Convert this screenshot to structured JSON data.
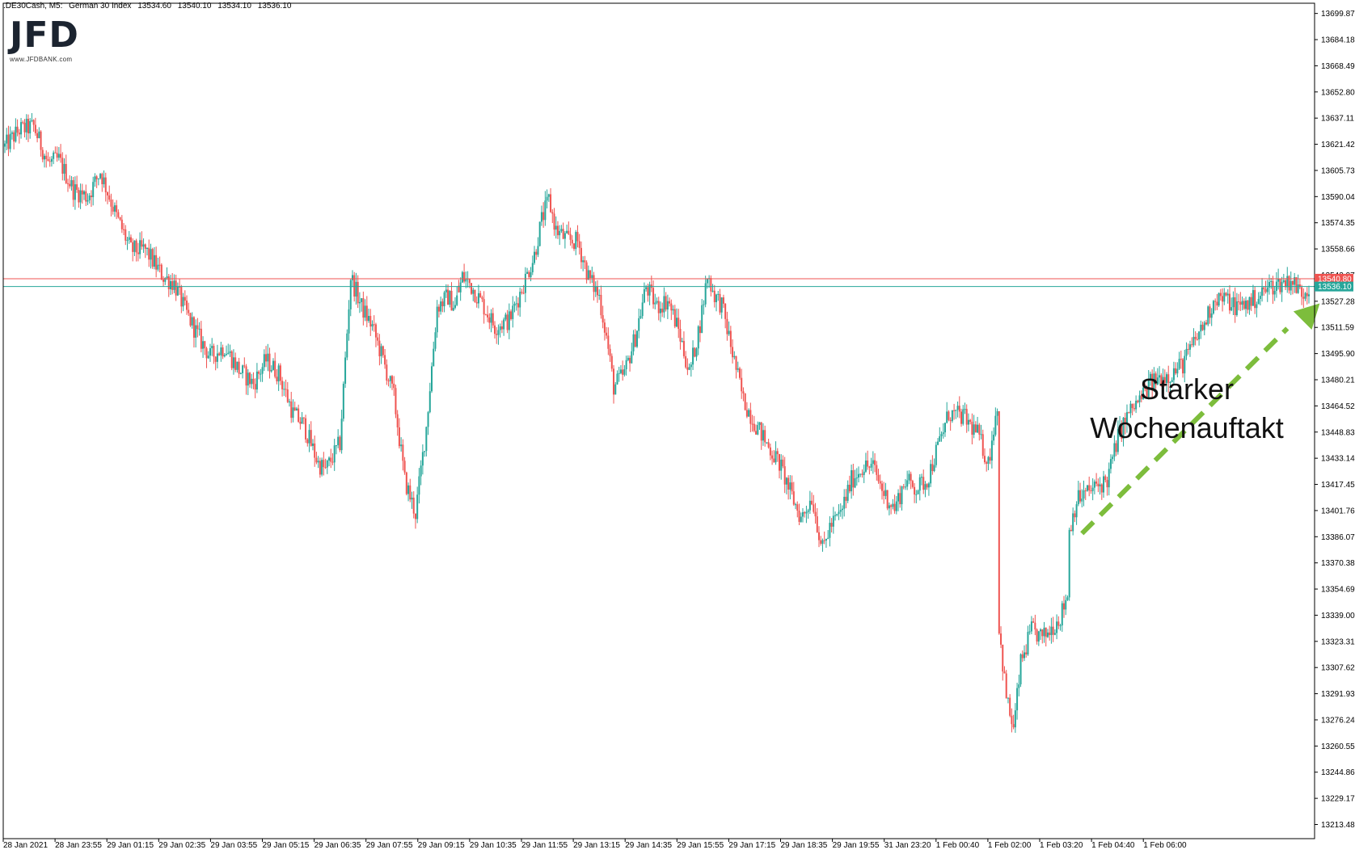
{
  "header": {
    "symbol": ".DE30Cash, M5:",
    "instrument": "German 30 Index",
    "ohlc": [
      "13534.60",
      "13540.10",
      "13534.10",
      "13536.10"
    ]
  },
  "logo": {
    "text": "JFD",
    "url": "www.JFDBANK.com"
  },
  "annotation": {
    "line1": "Starker",
    "line2": "Wochenauftakt"
  },
  "colors": {
    "bull": "#26a69a",
    "bear": "#ef5350",
    "arrow": "#7dbd3c",
    "ask_line": "#ef5350",
    "bid_line": "#26a69a"
  },
  "chart_data": {
    "type": "candlestick",
    "timeframe": "M5",
    "ylim": [
      13205,
      13706
    ],
    "y_ticks": [
      "13699.87",
      "13684.18",
      "13668.49",
      "13652.80",
      "13637.11",
      "13621.42",
      "13605.73",
      "13590.04",
      "13574.35",
      "13558.66",
      "13542.97",
      "13527.28",
      "13511.59",
      "13495.90",
      "13480.21",
      "13464.52",
      "13448.83",
      "13433.14",
      "13417.45",
      "13401.76",
      "13386.07",
      "13370.38",
      "13354.69",
      "13339.00",
      "13323.31",
      "13307.62",
      "13291.93",
      "13276.24",
      "13260.55",
      "13244.86",
      "13229.17",
      "13213.48"
    ],
    "x_ticks": [
      "28 Jan 2021",
      "28 Jan 23:55",
      "29 Jan 01:15",
      "29 Jan 02:35",
      "29 Jan 03:55",
      "29 Jan 05:15",
      "29 Jan 06:35",
      "29 Jan 07:55",
      "29 Jan 09:15",
      "29 Jan 10:35",
      "29 Jan 11:55",
      "29 Jan 13:15",
      "29 Jan 14:35",
      "29 Jan 15:55",
      "29 Jan 17:15",
      "29 Jan 18:35",
      "29 Jan 19:55",
      "31 Jan 23:20",
      "1 Feb 00:40",
      "1 Feb 02:00",
      "1 Feb 03:20",
      "1 Feb 04:40",
      "1 Feb 06:00"
    ],
    "price_lines": {
      "ask": 13540.8,
      "bid": 13536.1
    },
    "price_labels": {
      "ask": "13540.80",
      "bid": "13536.10"
    },
    "session_gap_after_index": 251,
    "path": [
      [
        0,
        13620
      ],
      [
        8,
        13630
      ],
      [
        16,
        13632
      ],
      [
        24,
        13610
      ],
      [
        30,
        13612
      ],
      [
        38,
        13594
      ],
      [
        46,
        13590
      ],
      [
        53,
        13605
      ],
      [
        62,
        13578
      ],
      [
        70,
        13558
      ],
      [
        78,
        13558
      ],
      [
        88,
        13542
      ],
      [
        94,
        13538
      ],
      [
        100,
        13522
      ],
      [
        108,
        13505
      ],
      [
        114,
        13494
      ],
      [
        122,
        13500
      ],
      [
        130,
        13486
      ],
      [
        138,
        13478
      ],
      [
        145,
        13492
      ],
      [
        152,
        13484
      ],
      [
        160,
        13460
      ],
      [
        166,
        13453
      ],
      [
        174,
        13430
      ],
      [
        178,
        13426
      ],
      [
        186,
        13442
      ],
      [
        192,
        13542
      ],
      [
        198,
        13524
      ],
      [
        204,
        13512
      ],
      [
        210,
        13492
      ],
      [
        216,
        13470
      ],
      [
        222,
        13420
      ],
      [
        228,
        13400
      ],
      [
        234,
        13452
      ],
      [
        240,
        13524
      ],
      [
        246,
        13530
      ],
      [
        250,
        13524
      ],
      [
        254,
        13542
      ],
      [
        258,
        13538
      ],
      [
        266,
        13524
      ],
      [
        272,
        13512
      ],
      [
        280,
        13516
      ],
      [
        286,
        13532
      ],
      [
        294,
        13555
      ],
      [
        298,
        13576
      ],
      [
        302,
        13588
      ],
      [
        306,
        13570
      ],
      [
        312,
        13564
      ],
      [
        318,
        13563
      ],
      [
        324,
        13542
      ],
      [
        330,
        13530
      ],
      [
        334,
        13506
      ],
      [
        338,
        13476
      ],
      [
        344,
        13484
      ],
      [
        350,
        13506
      ],
      [
        356,
        13536
      ],
      [
        362,
        13524
      ],
      [
        368,
        13528
      ],
      [
        374,
        13510
      ],
      [
        380,
        13484
      ],
      [
        386,
        13514
      ],
      [
        390,
        13543
      ],
      [
        394,
        13531
      ],
      [
        398,
        13525
      ],
      [
        404,
        13496
      ],
      [
        410,
        13468
      ],
      [
        416,
        13455
      ],
      [
        424,
        13440
      ],
      [
        430,
        13430
      ],
      [
        436,
        13413
      ],
      [
        442,
        13397
      ],
      [
        448,
        13410
      ],
      [
        454,
        13378
      ],
      [
        458,
        13392
      ],
      [
        464,
        13400
      ],
      [
        470,
        13420
      ],
      [
        476,
        13428
      ],
      [
        482,
        13428
      ],
      [
        488,
        13412
      ],
      [
        494,
        13403
      ],
      [
        500,
        13420
      ],
      [
        506,
        13415
      ],
      [
        512,
        13420
      ],
      [
        518,
        13440
      ],
      [
        524,
        13460
      ],
      [
        532,
        13458
      ],
      [
        540,
        13448
      ],
      [
        546,
        13430
      ],
      [
        551,
        13466
      ],
      [
        552,
        13330
      ],
      [
        556,
        13290
      ],
      [
        560,
        13270
      ],
      [
        564,
        13310
      ],
      [
        570,
        13330
      ],
      [
        576,
        13325
      ],
      [
        580,
        13330
      ],
      [
        586,
        13338
      ],
      [
        590,
        13352
      ],
      [
        591,
        13390
      ],
      [
        595,
        13408
      ],
      [
        600,
        13412
      ],
      [
        606,
        13416
      ],
      [
        612,
        13420
      ],
      [
        618,
        13446
      ],
      [
        624,
        13460
      ],
      [
        630,
        13468
      ],
      [
        636,
        13478
      ],
      [
        642,
        13482
      ],
      [
        648,
        13484
      ],
      [
        654,
        13490
      ],
      [
        660,
        13502
      ],
      [
        666,
        13514
      ],
      [
        672,
        13530
      ],
      [
        678,
        13528
      ],
      [
        684,
        13524
      ],
      [
        690,
        13526
      ],
      [
        696,
        13530
      ],
      [
        702,
        13536
      ],
      [
        708,
        13538
      ],
      [
        714,
        13540
      ],
      [
        720,
        13532
      ],
      [
        724,
        13536
      ]
    ]
  }
}
